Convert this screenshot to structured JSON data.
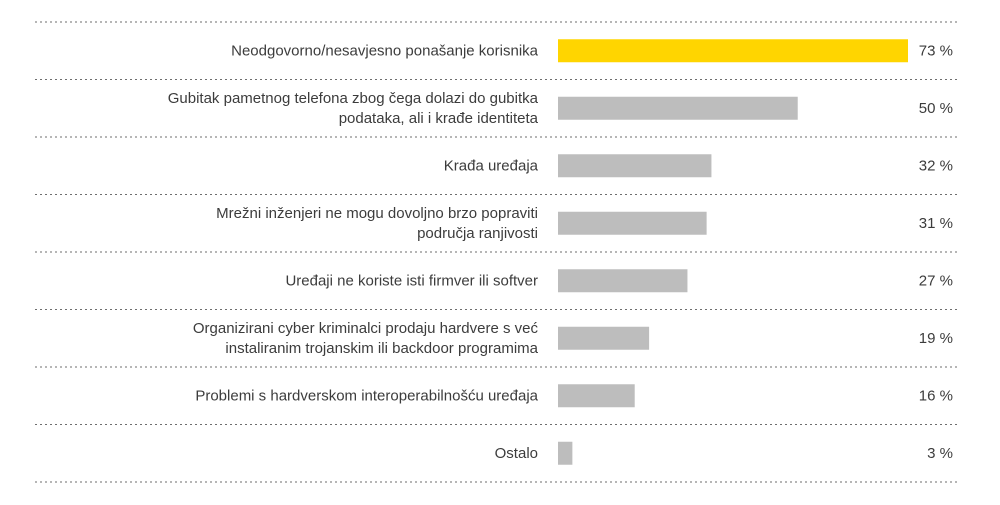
{
  "chart_data": {
    "type": "bar",
    "orientation": "horizontal",
    "title": "",
    "xlabel": "",
    "ylabel": "",
    "xlim": [
      0,
      80
    ],
    "value_suffix": " %",
    "grid": false,
    "legend": "none",
    "categories": [
      [
        "Neodgovorno/nesavjesno ponašanje korisnika"
      ],
      [
        "Gubitak pametnog telefona zbog čega dolazi do gubitka",
        "podataka, ali i krađe identiteta"
      ],
      [
        "Krađa uređaja"
      ],
      [
        "Mrežni inženjeri ne mogu dovoljno brzo popraviti",
        "područja ranjivosti"
      ],
      [
        "Uređaji ne koriste isti firmver ili softver"
      ],
      [
        "Organizirani cyber kriminalci prodaju hardvere s već",
        "instaliranim trojanskim ili backdoor programima"
      ],
      [
        "Problemi s hardverskom interoperabilnošću uređaja"
      ],
      [
        "Ostalo"
      ]
    ],
    "values": [
      73,
      50,
      32,
      31,
      27,
      19,
      16,
      3
    ],
    "value_labels": [
      "73 %",
      "50 %",
      "32 %",
      "31 %",
      "27 %",
      "19 %",
      "16 %",
      "3 %"
    ],
    "colors": {
      "highlight": "#FFD500",
      "bar": "#BDBDBD",
      "separator": "#6E6E6E",
      "text": "#3C3C3C"
    },
    "highlight_index": 0
  }
}
